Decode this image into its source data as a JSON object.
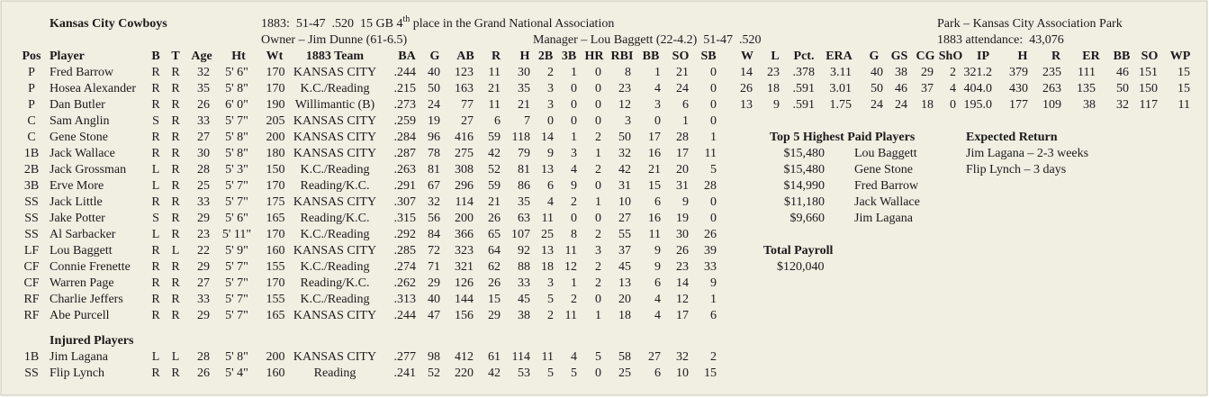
{
  "header": {
    "team": "Kansas City Cowboys",
    "record": "1883:  51-47  .520  15 GB",
    "ordinal": "4",
    "ordinal_suffix": "th",
    "place": "place in the Grand National Association",
    "park": "Park – Kansas City Association Park",
    "owner": "Owner – Jim Dunne (61-6.5)",
    "manager": "Manager – Lou Baggett (22-4.2)  51-47  .520",
    "attendance": "1883 attendance:  43,076"
  },
  "batting": {
    "columns": [
      "Pos",
      "Player",
      "B",
      "T",
      "Age",
      "Ht",
      "Wt",
      "1883 Team",
      "BA",
      "G",
      "AB",
      "R",
      "H",
      "2B",
      "3B",
      "HR",
      "RBI",
      "BB",
      "SO",
      "SB"
    ],
    "rows": [
      [
        "P",
        "Fred Barrow",
        "R",
        "R",
        "32",
        "5' 6\"",
        "170",
        "KANSAS CITY",
        ".244",
        "40",
        "123",
        "11",
        "30",
        "2",
        "1",
        "0",
        "8",
        "1",
        "21",
        "0"
      ],
      [
        "P",
        "Hosea Alexander",
        "R",
        "R",
        "35",
        "5' 8\"",
        "170",
        "K.C./Reading",
        ".215",
        "50",
        "163",
        "21",
        "35",
        "3",
        "0",
        "0",
        "23",
        "4",
        "24",
        "0"
      ],
      [
        "P",
        "Dan Butler",
        "R",
        "R",
        "26",
        "6' 0\"",
        "190",
        "Willimantic (B)",
        ".273",
        "24",
        "77",
        "11",
        "21",
        "3",
        "0",
        "0",
        "12",
        "3",
        "6",
        "0"
      ],
      [
        "C",
        "Sam Anglin",
        "S",
        "R",
        "33",
        "5' 7\"",
        "205",
        "KANSAS CITY",
        ".259",
        "19",
        "27",
        "6",
        "7",
        "0",
        "0",
        "0",
        "3",
        "0",
        "1",
        "0"
      ],
      [
        "C",
        "Gene Stone",
        "R",
        "R",
        "27",
        "5' 8\"",
        "200",
        "KANSAS CITY",
        ".284",
        "96",
        "416",
        "59",
        "118",
        "14",
        "1",
        "2",
        "50",
        "17",
        "28",
        "1"
      ],
      [
        "1B",
        "Jack Wallace",
        "R",
        "R",
        "30",
        "5' 8\"",
        "180",
        "KANSAS CITY",
        ".287",
        "78",
        "275",
        "42",
        "79",
        "9",
        "3",
        "1",
        "32",
        "16",
        "17",
        "11"
      ],
      [
        "2B",
        "Jack Grossman",
        "L",
        "R",
        "28",
        "5' 3\"",
        "150",
        "K.C./Reading",
        ".263",
        "81",
        "308",
        "52",
        "81",
        "13",
        "4",
        "2",
        "42",
        "21",
        "20",
        "5"
      ],
      [
        "3B",
        "Erve More",
        "L",
        "R",
        "25",
        "5' 7\"",
        "170",
        "Reading/K.C.",
        ".291",
        "67",
        "296",
        "59",
        "86",
        "6",
        "9",
        "0",
        "31",
        "15",
        "31",
        "28"
      ],
      [
        "SS",
        "Jack Little",
        "R",
        "R",
        "33",
        "5' 7\"",
        "175",
        "KANSAS CITY",
        ".307",
        "32",
        "114",
        "21",
        "35",
        "4",
        "2",
        "1",
        "10",
        "6",
        "9",
        "0"
      ],
      [
        "SS",
        "Jake Potter",
        "S",
        "R",
        "29",
        "5' 6\"",
        "165",
        "Reading/K.C.",
        ".315",
        "56",
        "200",
        "26",
        "63",
        "11",
        "0",
        "0",
        "27",
        "16",
        "19",
        "0"
      ],
      [
        "SS",
        "Al Sarbacker",
        "L",
        "R",
        "23",
        "5' 11\"",
        "170",
        "K.C./Reading",
        ".292",
        "84",
        "366",
        "65",
        "107",
        "25",
        "8",
        "2",
        "55",
        "11",
        "30",
        "26"
      ],
      [
        "LF",
        "Lou Baggett",
        "R",
        "L",
        "22",
        "5' 9\"",
        "160",
        "KANSAS CITY",
        ".285",
        "72",
        "323",
        "64",
        "92",
        "13",
        "11",
        "3",
        "37",
        "9",
        "26",
        "39"
      ],
      [
        "CF",
        "Connie Frenette",
        "R",
        "R",
        "29",
        "5' 7\"",
        "155",
        "K.C./Reading",
        ".274",
        "71",
        "321",
        "62",
        "88",
        "18",
        "12",
        "2",
        "45",
        "9",
        "23",
        "33"
      ],
      [
        "CF",
        "Warren Page",
        "R",
        "R",
        "27",
        "5' 7\"",
        "170",
        "Reading/K.C.",
        ".262",
        "29",
        "126",
        "26",
        "33",
        "3",
        "1",
        "2",
        "13",
        "6",
        "14",
        "9"
      ],
      [
        "RF",
        "Charlie Jeffers",
        "R",
        "R",
        "33",
        "5' 7\"",
        "155",
        "K.C./Reading",
        ".313",
        "40",
        "144",
        "15",
        "45",
        "5",
        "2",
        "0",
        "20",
        "4",
        "12",
        "1"
      ],
      [
        "RF",
        "Abe Purcell",
        "R",
        "R",
        "29",
        "5' 7\"",
        "165",
        "KANSAS CITY",
        ".244",
        "47",
        "156",
        "29",
        "38",
        "2",
        "11",
        "1",
        "18",
        "4",
        "17",
        "6"
      ]
    ]
  },
  "injured": {
    "title": "Injured Players",
    "rows": [
      [
        "1B",
        "Jim Lagana",
        "L",
        "L",
        "28",
        "5' 8\"",
        "200",
        "KANSAS CITY",
        ".277",
        "98",
        "412",
        "61",
        "114",
        "11",
        "4",
        "5",
        "58",
        "27",
        "32",
        "2"
      ],
      [
        "SS",
        "Flip Lynch",
        "R",
        "R",
        "26",
        "5' 4\"",
        "160",
        "Reading",
        ".241",
        "52",
        "220",
        "42",
        "53",
        "5",
        "5",
        "0",
        "25",
        "6",
        "10",
        "15"
      ]
    ]
  },
  "pitching": {
    "columns": [
      "W",
      "L",
      "Pct.",
      "ERA",
      "G",
      "GS",
      "CG",
      "ShO",
      "IP",
      "H",
      "R",
      "ER",
      "BB",
      "SO",
      "WP"
    ],
    "rows": [
      [
        "14",
        "23",
        ".378",
        "3.11",
        "40",
        "38",
        "29",
        "2",
        "321.2",
        "379",
        "235",
        "111",
        "46",
        "151",
        "15"
      ],
      [
        "26",
        "18",
        ".591",
        "3.01",
        "50",
        "46",
        "37",
        "4",
        "404.0",
        "430",
        "263",
        "135",
        "50",
        "150",
        "15"
      ],
      [
        "13",
        "9",
        ".591",
        "1.75",
        "24",
        "24",
        "18",
        "0",
        "195.0",
        "177",
        "109",
        "38",
        "32",
        "117",
        "11"
      ]
    ]
  },
  "top_paid": {
    "title": "Top 5 Highest Paid Players",
    "rows": [
      [
        "$15,480",
        "Lou Baggett"
      ],
      [
        "$15,480",
        "Gene Stone"
      ],
      [
        "$14,990",
        "Fred Barrow"
      ],
      [
        "$11,180",
        "Jack Wallace"
      ],
      [
        "$9,660",
        "Jim Lagana"
      ]
    ]
  },
  "expected_return": {
    "title": "Expected Return",
    "items": [
      "Jim Lagana – 2-3 weeks",
      "Flip Lynch – 3 days"
    ]
  },
  "payroll": {
    "title": "Total Payroll",
    "value": "$120,040"
  }
}
